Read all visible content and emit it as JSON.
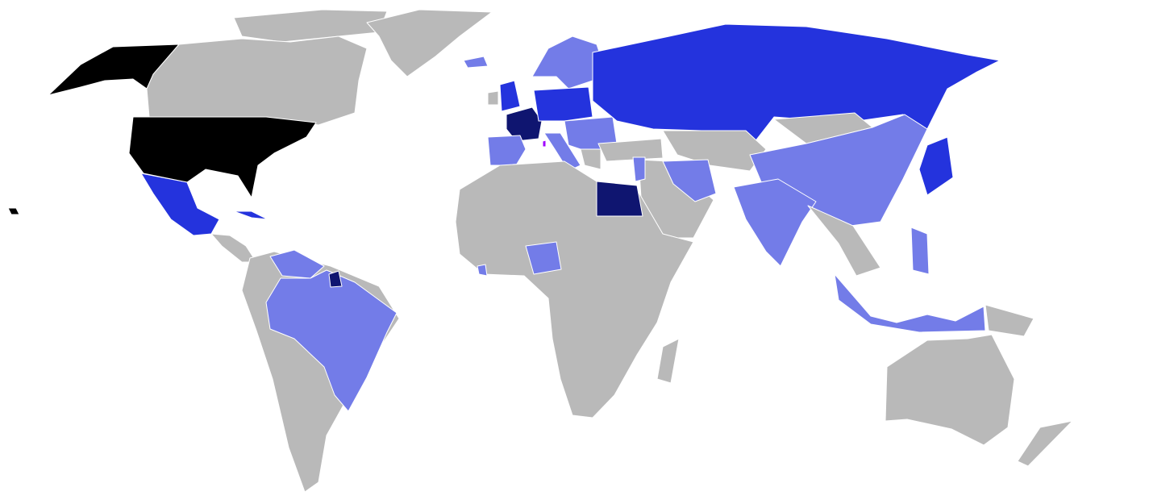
{
  "map": {
    "type": "choropleth world map",
    "projection": "Robinson-like",
    "colors": {
      "ocean": "#ffffff",
      "borders": "#ffffff",
      "none": "#b9b9b9",
      "level1": "#737ce8",
      "level2": "#2433dd",
      "level3": "#0f1570",
      "level4": "#000000",
      "highlight": "#a000ff"
    }
  }
}
